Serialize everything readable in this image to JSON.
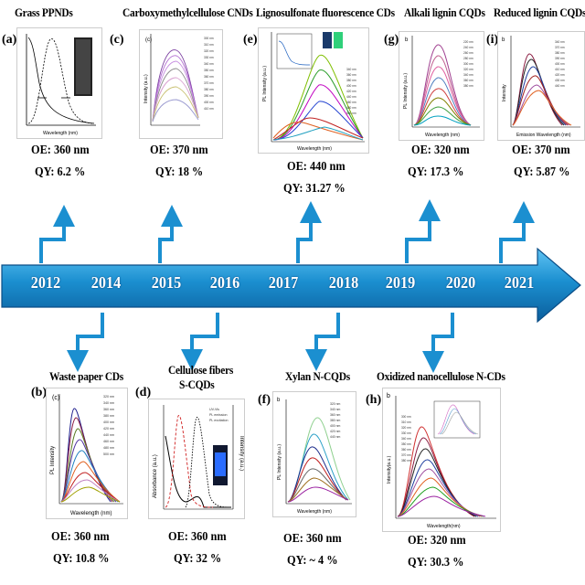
{
  "timeline": {
    "years": [
      "2012",
      "2014",
      "2015",
      "2016",
      "2017",
      "2018",
      "2019",
      "2020",
      "2021"
    ],
    "arrow_color": "#1b8fd0"
  },
  "top": [
    {
      "label": "(a)",
      "title": "Grass PPNDs",
      "oe": "OE: 360 nm",
      "qy": "QY: 6.2 %"
    },
    {
      "label": "(c)",
      "title": "Carboxymethylcellulose CNDs",
      "oe": "OE: 370 nm",
      "qy": "QY: 18 %"
    },
    {
      "label": "(e)",
      "title": "Lignosulfonate fluorescence CDs",
      "oe": "OE: 440 nm",
      "qy": "QY: 31.27 %"
    },
    {
      "label": "(g)",
      "title": "Alkali lignin CQDs",
      "oe": "OE: 320 nm",
      "qy": "QY: 17.3 %"
    },
    {
      "label": "(i)",
      "title": "Reduced lignin CQDs",
      "oe": "OE: 370 nm",
      "qy": "QY: 5.87 %"
    }
  ],
  "bottom": [
    {
      "label": "(b)",
      "title": "Waste paper CDs",
      "oe": "OE: 360 nm",
      "qy": "QY: 10.8 %"
    },
    {
      "label": "(d)",
      "title": "Cellulose fibers",
      "title2": "S-CQDs",
      "oe": "OE: 360 nm",
      "qy": "QY: 32 %"
    },
    {
      "label": "(f)",
      "title": "Xylan N-CQDs",
      "oe": "OE: 360 nm",
      "qy": "QY: ~ 4 %"
    },
    {
      "label": "(h)",
      "title": "Oxidized nanocellulose N-CDs",
      "oe": "OE: 320 nm",
      "qy": "QY: 30.3 %"
    }
  ],
  "panel_text": {
    "a_xlabel": "Wavelength (nm)",
    "b_inner": "(c)",
    "b_ylabel": "PL Intensity",
    "b_xlabel": "Wavelength (nm)",
    "c_inner": "(c)",
    "c_ylabel": "Intensity (a.u.)",
    "d_ylabel": "Absorbance (a.u.)",
    "d_ylabel2": "Intensity (a.u.)",
    "d_legend1": "UV-Vis",
    "d_legend2": "PL emission",
    "d_legend3": "PL excitation",
    "e_ylabel": "PL Intensity (a.u.)",
    "e_xlabel": "Wavelength (nm)",
    "f_inner": "b",
    "f_ylabel": "PL Intensity (a.u.)",
    "f_xlabel": "Wavelength (nm)",
    "g_inner": "b",
    "g_ylabel": "PL Intensity (a.u.)",
    "g_xlabel": "Wavelength (nm)",
    "h_inner": "b",
    "h_ylabel": "Intensity(a.u.)",
    "h_xlabel": "Wavelength(nm)",
    "i_inner": "b",
    "i_ylabel": "Intensity",
    "i_xlabel": "Emission Wavelength (nm)"
  }
}
